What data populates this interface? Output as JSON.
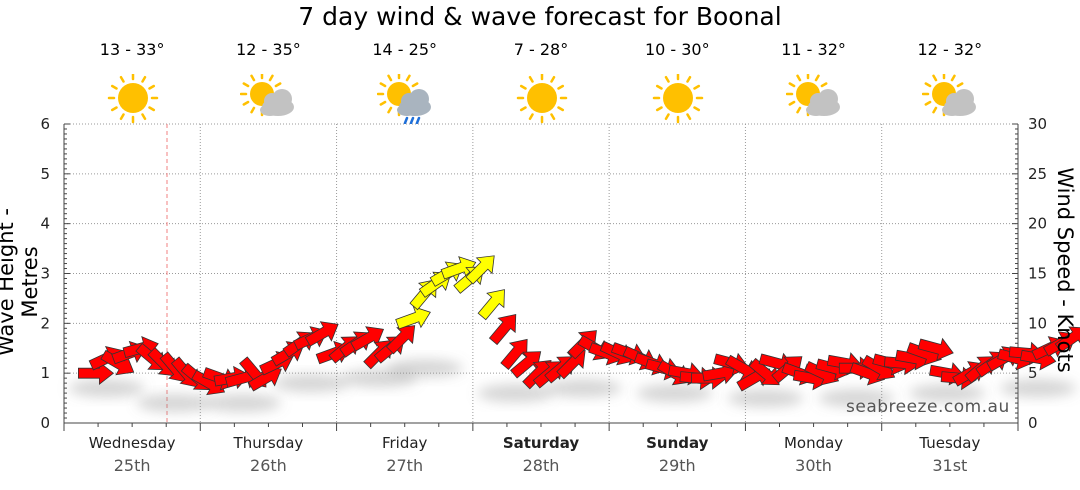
{
  "title": "7 day wind & wave forecast for Boonal",
  "brand": "seabreeze.com.au",
  "days": [
    {
      "name": "Wednesday",
      "date": "25th",
      "temp": "13 - 33°",
      "weather": "sun-icon",
      "bold": false
    },
    {
      "name": "Thursday",
      "date": "26th",
      "temp": "12 - 35°",
      "weather": "partly-cloudy-icon",
      "bold": false
    },
    {
      "name": "Friday",
      "date": "27th",
      "temp": "14 - 25°",
      "weather": "cloud-rain-icon",
      "bold": false
    },
    {
      "name": "Saturday",
      "date": "28th",
      "temp": "7 - 28°",
      "weather": "sun-icon",
      "bold": true
    },
    {
      "name": "Sunday",
      "date": "29th",
      "temp": "10 - 30°",
      "weather": "sun-icon",
      "bold": true
    },
    {
      "name": "Monday",
      "date": "30th",
      "temp": "11 - 32°",
      "weather": "partly-cloudy-icon",
      "bold": false
    },
    {
      "name": "Tuesday",
      "date": "31st",
      "temp": "12 - 32°",
      "weather": "partly-cloudy-icon",
      "bold": false
    }
  ],
  "chart_data": {
    "type": "scatter",
    "title": "7 day wind & wave forecast for Boonal",
    "ylabel_left": "Wave Height - Metres",
    "ylabel_right": "Wind Speed - Knots",
    "yticks_left": [
      "0",
      "1",
      "2",
      "3",
      "4",
      "5",
      "6"
    ],
    "yticks_right": [
      "0",
      "5",
      "10",
      "15",
      "20",
      "25",
      "30"
    ],
    "ylim_left": [
      0,
      6
    ],
    "ylim_right": [
      0,
      30
    ],
    "grid": true,
    "colors": {
      "strong": "#ff0000",
      "moderate": "#ffff00",
      "edge": "#333333"
    },
    "series": [
      {
        "name": "Wind",
        "marker": "arrow",
        "points": [
          {
            "t": 0.5,
            "ws": 5,
            "dir": 0
          },
          {
            "t": 1.0,
            "ws": 6.5,
            "dir": -25
          },
          {
            "t": 1.5,
            "ws": 6,
            "dir": 30
          },
          {
            "t": 2.0,
            "ws": 7,
            "dir": -20
          },
          {
            "t": 2.5,
            "ws": 7.5,
            "dir": -15
          },
          {
            "t": 3.0,
            "ws": 6.5,
            "dir": 40
          },
          {
            "t": 3.5,
            "ws": 6,
            "dir": 45
          },
          {
            "t": 4.0,
            "ws": 5.5,
            "dir": 50
          },
          {
            "t": 4.5,
            "ws": 5,
            "dir": 50
          },
          {
            "t": 5.0,
            "ws": 4.5,
            "dir": 40
          },
          {
            "t": 5.5,
            "ws": 4,
            "dir": 30
          },
          {
            "t": 6.0,
            "ws": 4.5,
            "dir": 20
          },
          {
            "t": 6.5,
            "ws": 4.5,
            "dir": -10
          },
          {
            "t": 7.0,
            "ws": 4.5,
            "dir": -15
          },
          {
            "t": 7.5,
            "ws": 5,
            "dir": 50
          },
          {
            "t": 8.0,
            "ws": 4.5,
            "dir": -30
          },
          {
            "t": 8.5,
            "ws": 6,
            "dir": -25
          },
          {
            "t": 9.0,
            "ws": 7,
            "dir": -30
          },
          {
            "t": 9.5,
            "ws": 8,
            "dir": -35
          },
          {
            "t": 10.0,
            "ws": 8.5,
            "dir": -25
          },
          {
            "t": 10.5,
            "ws": 9,
            "dir": -30
          },
          {
            "t": 11.0,
            "ws": 7,
            "dir": -20
          },
          {
            "t": 11.5,
            "ws": 7.5,
            "dir": -40
          },
          {
            "t": 12.0,
            "ws": 8,
            "dir": -35
          },
          {
            "t": 12.5,
            "ws": 8.5,
            "dir": -30
          },
          {
            "t": 13.0,
            "ws": 7,
            "dir": -45
          },
          {
            "t": 13.5,
            "ws": 7.5,
            "dir": -40
          },
          {
            "t": 14.0,
            "ws": 8.5,
            "dir": -45
          },
          {
            "t": 14.5,
            "ws": 10.5,
            "dir": -20
          },
          {
            "t": 15.0,
            "ws": 13,
            "dir": -50
          },
          {
            "t": 15.5,
            "ws": 14,
            "dir": -35
          },
          {
            "t": 16.0,
            "ws": 15,
            "dir": -30
          },
          {
            "t": 16.5,
            "ws": 15.5,
            "dir": -20
          },
          {
            "t": 17.0,
            "ws": 14.5,
            "dir": -40
          },
          {
            "t": 17.5,
            "ws": 15.5,
            "dir": -45
          },
          {
            "t": 18.0,
            "ws": 12,
            "dir": -50
          },
          {
            "t": 18.5,
            "ws": 9.5,
            "dir": -50
          },
          {
            "t": 19.0,
            "ws": 7,
            "dir": -50
          },
          {
            "t": 19.5,
            "ws": 6,
            "dir": -40
          },
          {
            "t": 20.0,
            "ws": 5,
            "dir": -45
          },
          {
            "t": 20.5,
            "ws": 5,
            "dir": -40
          },
          {
            "t": 21.0,
            "ws": 5.5,
            "dir": -40
          },
          {
            "t": 21.5,
            "ws": 6,
            "dir": -45
          },
          {
            "t": 22.0,
            "ws": 8,
            "dir": -45
          },
          {
            "t": 22.5,
            "ws": 7.5,
            "dir": 30
          },
          {
            "t": 23.0,
            "ws": 7,
            "dir": 20
          },
          {
            "t": 23.5,
            "ws": 7,
            "dir": 25
          },
          {
            "t": 24.0,
            "ws": 7,
            "dir": 20
          },
          {
            "t": 24.5,
            "ws": 6.5,
            "dir": 25
          },
          {
            "t": 25.0,
            "ws": 6,
            "dir": 20
          },
          {
            "t": 25.5,
            "ws": 5.5,
            "dir": 15
          },
          {
            "t": 26.0,
            "ws": 5,
            "dir": 30
          },
          {
            "t": 26.5,
            "ws": 5,
            "dir": 10
          },
          {
            "t": 27.0,
            "ws": 4.5,
            "dir": 5
          },
          {
            "t": 27.5,
            "ws": 4.5,
            "dir": 0
          },
          {
            "t": 28.0,
            "ws": 5,
            "dir": -10
          },
          {
            "t": 28.5,
            "ws": 6,
            "dir": 15
          },
          {
            "t": 29.0,
            "ws": 5.5,
            "dir": 30
          },
          {
            "t": 29.5,
            "ws": 4.5,
            "dir": -30
          },
          {
            "t": 30.0,
            "ws": 5,
            "dir": 40
          },
          {
            "t": 30.5,
            "ws": 6,
            "dir": 15
          },
          {
            "t": 31.0,
            "ws": 5.5,
            "dir": -40
          },
          {
            "t": 31.5,
            "ws": 5,
            "dir": 20
          },
          {
            "t": 32.0,
            "ws": 4.5,
            "dir": 10
          },
          {
            "t": 32.5,
            "ws": 5,
            "dir": 25
          },
          {
            "t": 33.0,
            "ws": 5.5,
            "dir": 15
          },
          {
            "t": 33.5,
            "ws": 6,
            "dir": 10
          },
          {
            "t": 34.0,
            "ws": 5.5,
            "dir": 0
          },
          {
            "t": 34.5,
            "ws": 5,
            "dir": 20
          },
          {
            "t": 35.0,
            "ws": 5.5,
            "dir": 30
          },
          {
            "t": 35.5,
            "ws": 6,
            "dir": 15
          },
          {
            "t": 36.0,
            "ws": 6,
            "dir": 5
          },
          {
            "t": 36.5,
            "ws": 6.5,
            "dir": 10
          },
          {
            "t": 37.0,
            "ws": 7,
            "dir": 20
          },
          {
            "t": 37.5,
            "ws": 7.5,
            "dir": 15
          },
          {
            "t": 38.0,
            "ws": 5,
            "dir": 10
          },
          {
            "t": 38.5,
            "ws": 4.5,
            "dir": 5
          },
          {
            "t": 39.0,
            "ws": 5,
            "dir": -30
          },
          {
            "t": 39.5,
            "ws": 5.5,
            "dir": -40
          },
          {
            "t": 40.0,
            "ws": 6,
            "dir": -35
          },
          {
            "t": 40.5,
            "ws": 6.5,
            "dir": -30
          },
          {
            "t": 41.0,
            "ws": 6.5,
            "dir": 15
          },
          {
            "t": 41.5,
            "ws": 7,
            "dir": 5
          },
          {
            "t": 42.0,
            "ws": 6.5,
            "dir": 10
          },
          {
            "t": 42.5,
            "ws": 7.5,
            "dir": -25
          },
          {
            "t": 43.0,
            "ws": 8,
            "dir": -30
          },
          {
            "t": 43.5,
            "ws": 8.5,
            "dir": -35
          }
        ]
      },
      {
        "name": "Waves",
        "marker": "shadow",
        "points": [
          {
            "t": 1,
            "h": 0.9
          },
          {
            "t": 4,
            "h": 0.6
          },
          {
            "t": 7,
            "h": 0.6
          },
          {
            "t": 10,
            "h": 1.0
          },
          {
            "t": 13,
            "h": 1.1
          },
          {
            "t": 15,
            "h": 1.3
          },
          {
            "t": 19,
            "h": 0.8
          },
          {
            "t": 22,
            "h": 0.9
          },
          {
            "t": 26,
            "h": 0.8
          },
          {
            "t": 30,
            "h": 0.7
          },
          {
            "t": 34,
            "h": 0.7
          },
          {
            "t": 38,
            "h": 0.8
          },
          {
            "t": 42,
            "h": 0.9
          }
        ]
      }
    ],
    "x_per_day": 6
  }
}
